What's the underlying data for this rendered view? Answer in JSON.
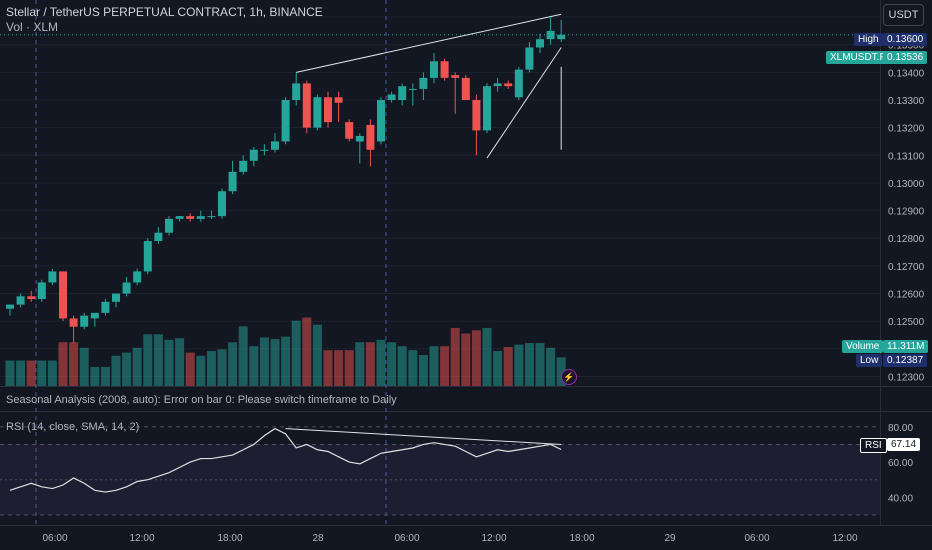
{
  "header": {
    "title": "Stellar / TetherUS PERPETUAL CONTRACT, 1h, BINANCE",
    "volume_label": "Vol · XLM",
    "currency": "USDT"
  },
  "indicators": {
    "seasonal": "Seasonal Analysis (2008, auto): Error on bar 0: Please switch timeframe to Daily",
    "rsi_label": "RSI (14, close, SMA, 14, 2)"
  },
  "tags": {
    "high_label": "High",
    "high_value": "0.13600",
    "symbol_label": "XLMUSDT.P",
    "last_value": "0.13536",
    "volume_label": "Volume",
    "volume_value": "11.311M",
    "low_label": "Low",
    "low_value": "0.12387",
    "rsi_tag": "RSI",
    "rsi_value": "67.14"
  },
  "colors": {
    "up": "#26a69a",
    "down": "#ef5350",
    "background": "#131722",
    "rsi_line": "#e0e0e0",
    "rsi_band": "#7e57c2"
  },
  "chart_data": {
    "type": "candlestick",
    "price_axis": [
      "0.13600",
      "0.13500",
      "0.13400",
      "0.13300",
      "0.13200",
      "0.13100",
      "0.13000",
      "0.12900",
      "0.12800",
      "0.12700",
      "0.12600",
      "0.12500",
      "0.12400",
      "0.12300"
    ],
    "price_range": [
      0.1228,
      0.1364
    ],
    "time_axis": [
      "06:00",
      "12:00",
      "18:00",
      "28",
      "06:00",
      "12:00",
      "18:00",
      "29",
      "06:00",
      "12:00"
    ],
    "candles": [
      {
        "o": 0.12545,
        "h": 0.1256,
        "l": 0.1252,
        "c": 0.1256
      },
      {
        "o": 0.1256,
        "h": 0.126,
        "l": 0.1255,
        "c": 0.1259
      },
      {
        "o": 0.1259,
        "h": 0.1261,
        "l": 0.1257,
        "c": 0.1258
      },
      {
        "o": 0.1258,
        "h": 0.1265,
        "l": 0.1257,
        "c": 0.1264
      },
      {
        "o": 0.1264,
        "h": 0.1269,
        "l": 0.1263,
        "c": 0.1268
      },
      {
        "o": 0.1268,
        "h": 0.1268,
        "l": 0.125,
        "c": 0.1251
      },
      {
        "o": 0.1251,
        "h": 0.1252,
        "l": 0.1242,
        "c": 0.1248
      },
      {
        "o": 0.1248,
        "h": 0.1253,
        "l": 0.1247,
        "c": 0.1252
      },
      {
        "o": 0.1251,
        "h": 0.1253,
        "l": 0.1248,
        "c": 0.1253
      },
      {
        "o": 0.1253,
        "h": 0.1258,
        "l": 0.1252,
        "c": 0.1257
      },
      {
        "o": 0.1257,
        "h": 0.126,
        "l": 0.1255,
        "c": 0.126
      },
      {
        "o": 0.126,
        "h": 0.1266,
        "l": 0.1259,
        "c": 0.1264
      },
      {
        "o": 0.1264,
        "h": 0.1269,
        "l": 0.1263,
        "c": 0.1268
      },
      {
        "o": 0.1268,
        "h": 0.128,
        "l": 0.1267,
        "c": 0.1279
      },
      {
        "o": 0.1279,
        "h": 0.1284,
        "l": 0.1278,
        "c": 0.1282
      },
      {
        "o": 0.1282,
        "h": 0.1288,
        "l": 0.1281,
        "c": 0.1287
      },
      {
        "o": 0.1287,
        "h": 0.1288,
        "l": 0.1286,
        "c": 0.1288
      },
      {
        "o": 0.1288,
        "h": 0.1289,
        "l": 0.1286,
        "c": 0.1287
      },
      {
        "o": 0.1287,
        "h": 0.129,
        "l": 0.1286,
        "c": 0.1288
      },
      {
        "o": 0.1288,
        "h": 0.129,
        "l": 0.1287,
        "c": 0.1288
      },
      {
        "o": 0.1288,
        "h": 0.1298,
        "l": 0.1287,
        "c": 0.1297
      },
      {
        "o": 0.1297,
        "h": 0.1308,
        "l": 0.1296,
        "c": 0.1304
      },
      {
        "o": 0.1304,
        "h": 0.131,
        "l": 0.1303,
        "c": 0.1308
      },
      {
        "o": 0.1308,
        "h": 0.1313,
        "l": 0.1306,
        "c": 0.1312
      },
      {
        "o": 0.1312,
        "h": 0.1314,
        "l": 0.131,
        "c": 0.1312
      },
      {
        "o": 0.1312,
        "h": 0.1318,
        "l": 0.1311,
        "c": 0.1315
      },
      {
        "o": 0.1315,
        "h": 0.1331,
        "l": 0.1314,
        "c": 0.133
      },
      {
        "o": 0.133,
        "h": 0.134,
        "l": 0.1328,
        "c": 0.1336
      },
      {
        "o": 0.1336,
        "h": 0.1337,
        "l": 0.1318,
        "c": 0.132
      },
      {
        "o": 0.132,
        "h": 0.1332,
        "l": 0.1319,
        "c": 0.1331
      },
      {
        "o": 0.1331,
        "h": 0.1333,
        "l": 0.132,
        "c": 0.1322
      },
      {
        "o": 0.1331,
        "h": 0.1333,
        "l": 0.1322,
        "c": 0.1329
      },
      {
        "o": 0.1322,
        "h": 0.1323,
        "l": 0.1315,
        "c": 0.1316
      },
      {
        "o": 0.1315,
        "h": 0.1318,
        "l": 0.1307,
        "c": 0.1317
      },
      {
        "o": 0.1321,
        "h": 0.1323,
        "l": 0.1306,
        "c": 0.1312
      },
      {
        "o": 0.1315,
        "h": 0.1331,
        "l": 0.1314,
        "c": 0.133
      },
      {
        "o": 0.133,
        "h": 0.1333,
        "l": 0.1329,
        "c": 0.1332
      },
      {
        "o": 0.133,
        "h": 0.1336,
        "l": 0.1328,
        "c": 0.1335
      },
      {
        "o": 0.1334,
        "h": 0.1336,
        "l": 0.1328,
        "c": 0.1334
      },
      {
        "o": 0.1334,
        "h": 0.134,
        "l": 0.133,
        "c": 0.1338
      },
      {
        "o": 0.1338,
        "h": 0.1347,
        "l": 0.1336,
        "c": 0.1344
      },
      {
        "o": 0.1344,
        "h": 0.1345,
        "l": 0.1337,
        "c": 0.1338
      },
      {
        "o": 0.1339,
        "h": 0.134,
        "l": 0.1325,
        "c": 0.1338
      },
      {
        "o": 0.1338,
        "h": 0.1339,
        "l": 0.133,
        "c": 0.133
      },
      {
        "o": 0.133,
        "h": 0.1332,
        "l": 0.131,
        "c": 0.1319
      },
      {
        "o": 0.1319,
        "h": 0.1336,
        "l": 0.1318,
        "c": 0.1335
      },
      {
        "o": 0.1335,
        "h": 0.1338,
        "l": 0.1333,
        "c": 0.1336
      },
      {
        "o": 0.1336,
        "h": 0.1337,
        "l": 0.1334,
        "c": 0.1335
      },
      {
        "o": 0.1331,
        "h": 0.1342,
        "l": 0.133,
        "c": 0.1341
      },
      {
        "o": 0.1341,
        "h": 0.1351,
        "l": 0.134,
        "c": 0.1349
      },
      {
        "o": 0.1349,
        "h": 0.1354,
        "l": 0.1347,
        "c": 0.1352
      },
      {
        "o": 0.1352,
        "h": 0.136,
        "l": 0.135,
        "c": 0.1355
      },
      {
        "o": 0.1352,
        "h": 0.1359,
        "l": 0.1351,
        "c": 0.13536
      }
    ],
    "volume": {
      "range": [
        0,
        11.311
      ],
      "values": [
        3.2,
        3.2,
        3.2,
        3.2,
        3.2,
        5.5,
        5.5,
        4.8,
        2.4,
        2.4,
        3.8,
        4.2,
        4.8,
        6.5,
        6.5,
        5.8,
        6.0,
        4.2,
        3.8,
        4.4,
        4.6,
        5.5,
        7.5,
        5.0,
        6.1,
        5.9,
        6.2,
        8.2,
        8.6,
        7.7,
        4.5,
        4.5,
        4.5,
        5.5,
        5.5,
        5.8,
        5.5,
        5.0,
        4.5,
        3.9,
        5.0,
        5.0,
        7.3,
        6.6,
        7.0,
        7.3,
        4.4,
        4.9,
        5.2,
        5.4,
        5.4,
        4.8,
        3.6
      ]
    },
    "rsi": {
      "axis": [
        "80.00",
        "60.00",
        "40.00"
      ],
      "range": [
        30,
        85
      ],
      "band": [
        30,
        70
      ],
      "values": [
        44,
        46,
        48,
        46,
        45,
        47,
        51,
        48,
        44,
        43,
        44,
        46,
        49,
        50,
        52,
        54,
        57,
        60,
        62,
        62,
        63,
        64,
        67,
        70,
        75,
        79,
        76,
        68,
        70,
        67,
        66,
        63,
        60,
        59,
        62,
        65,
        66,
        67,
        68,
        70,
        71,
        70,
        69,
        66,
        63,
        65,
        67,
        66,
        67,
        68,
        69,
        70,
        67.14
      ]
    },
    "trendlines": [
      {
        "from": [
          27,
          0.134
        ],
        "to": [
          52,
          0.1361
        ]
      },
      {
        "from": [
          45,
          0.1309
        ],
        "to": [
          52,
          0.1349
        ]
      },
      {
        "from": [
          52,
          0.1342
        ],
        "to": [
          52,
          0.1312
        ]
      }
    ],
    "rsi_trendline": {
      "from": [
        26,
        79
      ],
      "to": [
        52,
        70
      ]
    }
  }
}
